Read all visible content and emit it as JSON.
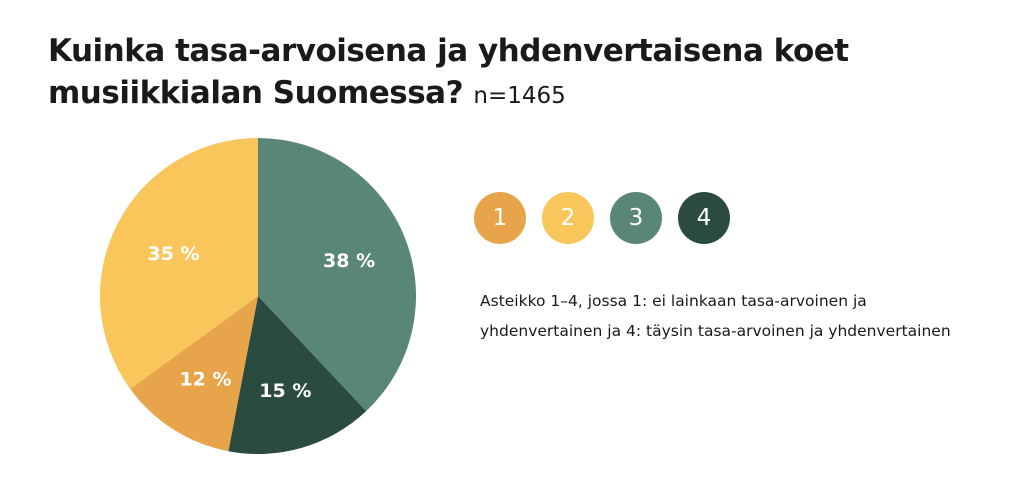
{
  "header": {
    "title": "Kuinka tasa-arvoisena ja yhdenvertaisena koet musiikkialan Suomessa?",
    "sample": "n=1465"
  },
  "legend": {
    "items": [
      {
        "label": "1",
        "color": "#E8A44A"
      },
      {
        "label": "2",
        "color": "#F8C65A"
      },
      {
        "label": "3",
        "color": "#5A8676"
      },
      {
        "label": "4",
        "color": "#2B4A40"
      }
    ]
  },
  "note": "Asteikko 1–4, jossa 1: ei lainkaan tasa-arvoinen ja yhdenvertainen ja 4: täysin tasa-arvoinen ja yhdenvertainen",
  "chart_data": {
    "type": "pie",
    "title": "Kuinka tasa-arvoisena ja yhdenvertaisena koet musiikkialan Suomessa?",
    "categories": [
      "1",
      "2",
      "3",
      "4"
    ],
    "values": [
      12,
      35,
      38,
      15
    ],
    "data_labels": [
      "12 %",
      "35 %",
      "38 %",
      "15 %"
    ],
    "colors": [
      "#E8A44A",
      "#F8C65A",
      "#5A8676",
      "#2B4A40"
    ],
    "legend_position": "right"
  }
}
